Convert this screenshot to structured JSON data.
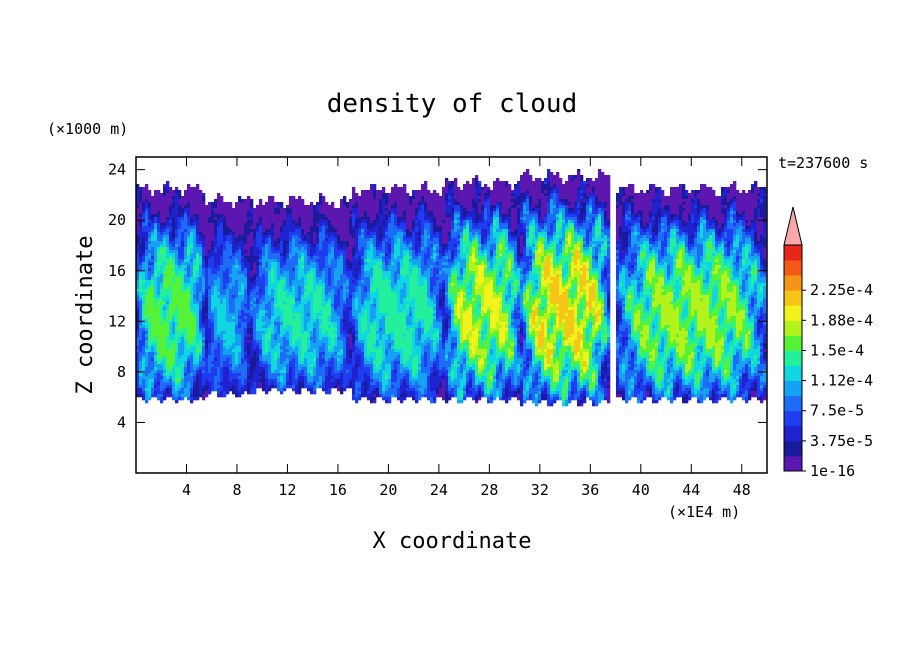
{
  "chart_data": {
    "type": "heatmap",
    "title": "density of cloud",
    "xlabel": "X coordinate",
    "ylabel": "Z coordinate",
    "x_unit": "(×1E4 m)",
    "y_unit": "(×1000 m)",
    "time_label": "t=237600 s",
    "xlim": [
      0,
      50
    ],
    "ylim": [
      0,
      25
    ],
    "x_ticks": [
      4,
      8,
      12,
      16,
      20,
      24,
      28,
      32,
      36,
      40,
      44,
      48
    ],
    "y_ticks": [
      4,
      8,
      12,
      16,
      20,
      24
    ],
    "grid": false,
    "colorbar": {
      "position": "right",
      "extend": "max",
      "tick_labels": [
        "1e-16",
        "3.75e-5",
        "7.5e-5",
        "1.12e-4",
        "1.5e-4",
        "1.88e-4",
        "2.25e-4"
      ],
      "levels": [
        1e-16,
        1.875e-05,
        3.75e-05,
        5.625e-05,
        7.5e-05,
        9.375e-05,
        0.0001125,
        0.00013125,
        0.00015,
        0.00016875,
        0.0001875,
        0.00020625,
        0.000225,
        0.00024375
      ],
      "colors": [
        "#5b17b0",
        "#1a1a9c",
        "#1f22cf",
        "#1e3df0",
        "#1c6cf7",
        "#16a2f2",
        "#10d6df",
        "#23ef9c",
        "#56f238",
        "#b4f21c",
        "#f2f21c",
        "#f6c51a",
        "#f59416",
        "#f25818",
        "#e8261a"
      ],
      "extend_color": "#f7a8a8"
    },
    "cloud_columns": [
      {
        "x": [
          0,
          5.5
        ],
        "base": 5.8,
        "top": 22.5,
        "core_max": 0.00016
      },
      {
        "x": [
          5.5,
          9
        ],
        "base": 6.2,
        "top": 21.5,
        "core_max": 0.00011
      },
      {
        "x": [
          9,
          17
        ],
        "base": 6.5,
        "top": 21.5,
        "core_max": 0.00013
      },
      {
        "x": [
          17,
          24.5
        ],
        "base": 5.8,
        "top": 22.5,
        "core_max": 0.00014
      },
      {
        "x": [
          24.5,
          30.5
        ],
        "base": 5.8,
        "top": 23.0,
        "core_max": 0.00018
      },
      {
        "x": [
          30.5,
          37.5
        ],
        "base": 5.6,
        "top": 23.5,
        "core_max": 0.0002
      },
      {
        "x": [
          38,
          50
        ],
        "base": 5.8,
        "top": 22.5,
        "core_max": 0.00017
      }
    ]
  }
}
